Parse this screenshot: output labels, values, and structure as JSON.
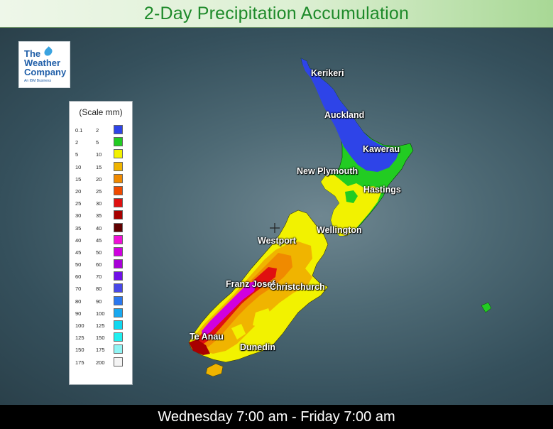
{
  "title": "2-Day Precipitation Accumulation",
  "logo": {
    "line1": "The",
    "line2": "Weather",
    "line3": "Company",
    "line4": "An IBM Business"
  },
  "legend": {
    "title": "(Scale mm)",
    "rows": [
      {
        "lo": "0.1",
        "hi": "2",
        "color": "#2e44e8"
      },
      {
        "lo": "2",
        "hi": "5",
        "color": "#22cc22"
      },
      {
        "lo": "5",
        "hi": "10",
        "color": "#f2f200"
      },
      {
        "lo": "10",
        "hi": "15",
        "color": "#f0b400"
      },
      {
        "lo": "15",
        "hi": "20",
        "color": "#f08a00"
      },
      {
        "lo": "20",
        "hi": "25",
        "color": "#f04a00"
      },
      {
        "lo": "25",
        "hi": "30",
        "color": "#e01010"
      },
      {
        "lo": "30",
        "hi": "35",
        "color": "#a80000"
      },
      {
        "lo": "35",
        "hi": "40",
        "color": "#600000"
      },
      {
        "lo": "40",
        "hi": "45",
        "color": "#f010d8"
      },
      {
        "lo": "45",
        "hi": "50",
        "color": "#d000e0"
      },
      {
        "lo": "50",
        "hi": "60",
        "color": "#a800d8"
      },
      {
        "lo": "60",
        "hi": "70",
        "color": "#7010e8"
      },
      {
        "lo": "70",
        "hi": "80",
        "color": "#4848e8"
      },
      {
        "lo": "80",
        "hi": "90",
        "color": "#2a78f0"
      },
      {
        "lo": "90",
        "hi": "100",
        "color": "#18a8f0"
      },
      {
        "lo": "100",
        "hi": "125",
        "color": "#10d8f0"
      },
      {
        "lo": "125",
        "hi": "150",
        "color": "#20f0f0"
      },
      {
        "lo": "150",
        "hi": "175",
        "color": "#90f4f4"
      },
      {
        "lo": "175",
        "hi": "200",
        "color": "#f4f4f4"
      }
    ]
  },
  "cities": {
    "kerikeri": "Kerikeri",
    "auckland": "Auckland",
    "kawerau": "Kawerau",
    "new_plymouth": "New Plymouth",
    "hastings": "Hastings",
    "wellington": "Wellington",
    "westport": "Westport",
    "franz_josef": "Franz Josef",
    "christchurch": "Christchurch",
    "te_anau": "Te Anau",
    "dunedin": "Dunedin"
  },
  "footer": {
    "period": "Wednesday 7:00 am - Friday 7:00 am"
  }
}
